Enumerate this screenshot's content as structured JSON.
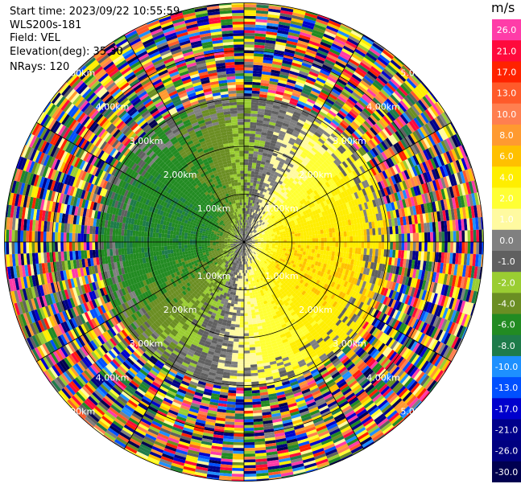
{
  "header": {
    "start_time": "Start time: 2023/09/22 10:55:59",
    "instrument": "WLS200s-181",
    "field": "Field: VEL",
    "elevation": "Elevation(deg): 35.30",
    "nrays": "NRays: 120"
  },
  "colorbar": {
    "unit": "m/s",
    "ticks": [
      "26.0",
      "21.0",
      "17.0",
      "13.0",
      "10.0",
      "8.0",
      "6.0",
      "4.0",
      "2.0",
      "1.0",
      "0.0",
      "-1.0",
      "-2.0",
      "-4.0",
      "-6.0",
      "-8.0",
      "-10.0",
      "-13.0",
      "-17.0",
      "-21.0",
      "-26.0",
      "-30.0"
    ],
    "colors": [
      "#ff3ca8",
      "#ff0a3c",
      "#ff2200",
      "#ff5a2a",
      "#ff7f50",
      "#ff9a30",
      "#ffc000",
      "#ffee00",
      "#ffff33",
      "#fffaa0",
      "#808080",
      "#606060",
      "#9acd32",
      "#6b8e23",
      "#228b22",
      "#1e7b4a",
      "#1e90ff",
      "#0050ff",
      "#0000cd",
      "#00008b",
      "#000080",
      "#000050"
    ]
  },
  "chart_data": {
    "type": "heatmap",
    "subtype": "ppi-polar-sector",
    "field": "VEL",
    "units": "m/s",
    "nrays": 120,
    "elevation_deg": 35.3,
    "range_ring_labels": [
      "1.00km",
      "2.00km",
      "3.00km",
      "4.00km",
      "5.00km"
    ],
    "range_rings_km": [
      1,
      2,
      3,
      4,
      5
    ],
    "max_range_km": 5.0,
    "color_scale": [
      -30,
      -26,
      -21,
      -17,
      -13,
      -10,
      -8,
      -6,
      -4,
      -2,
      -1,
      0,
      1,
      2,
      4,
      6,
      8,
      10,
      13,
      17,
      21,
      26
    ],
    "valid_data_range_km": 3.0,
    "pattern": "Velocities near 0 m/s close to center; positive (yellow/orange, 2-8 m/s) to the east and south-east, negative (green, -2 to -8 m/s) to the west; noisy random values beyond ~3 km."
  }
}
